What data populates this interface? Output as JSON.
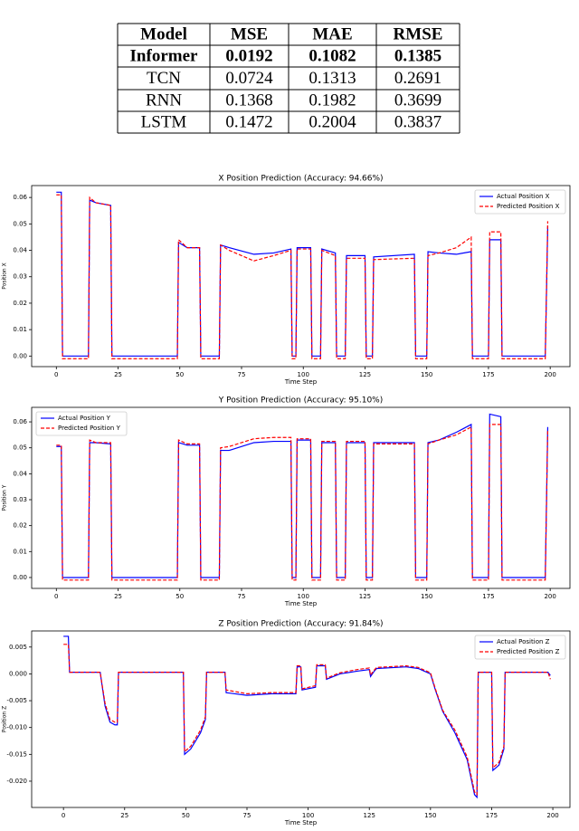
{
  "table": {
    "header": [
      "Model",
      "MSE",
      "MAE",
      "RMSE"
    ],
    "rows": [
      [
        "Informer",
        "0.0192",
        "0.1082",
        "0.1385"
      ],
      [
        "TCN",
        "0.0724",
        "0.1313",
        "0.2691"
      ],
      [
        "RNN",
        "0.1368",
        "0.1982",
        "0.3699"
      ],
      [
        "LSTM",
        "0.1472",
        "0.2004",
        "0.3837"
      ]
    ]
  },
  "chart_data": [
    {
      "type": "line",
      "title": "X Position Prediction (Accuracy: 94.66%)",
      "x_label": "Time Step",
      "y_label": "Position X",
      "xlim": [
        -10,
        208
      ],
      "xticks": [
        0,
        25,
        50,
        75,
        100,
        125,
        150,
        175,
        200
      ],
      "ylim": [
        -0.004,
        0.0645
      ],
      "yticks": [
        {
          "value": 0,
          "label": "0.00"
        },
        {
          "value": 0.01,
          "label": "0.01"
        },
        {
          "value": 0.02,
          "label": "0.02"
        },
        {
          "value": 0.03,
          "label": "0.03"
        },
        {
          "value": 0.04,
          "label": "0.04"
        },
        {
          "value": 0.05,
          "label": "0.05"
        },
        {
          "value": 0.06,
          "label": "0.06"
        }
      ],
      "legend": "upper right",
      "x": [
        0,
        2,
        2.5,
        13,
        13.5,
        16,
        22,
        22.5,
        49,
        49.5,
        53,
        58,
        58.5,
        66,
        66.5,
        70,
        80,
        88,
        95,
        95.5,
        97,
        97.5,
        103,
        103.5,
        107,
        107.5,
        113,
        113.5,
        117,
        117.5,
        125,
        125.5,
        128,
        128.5,
        145,
        145.5,
        150,
        150.5,
        155,
        162,
        168,
        168.5,
        175,
        175.5,
        180,
        180.5,
        198,
        199
      ],
      "series": [
        {
          "name": "Actual Position X",
          "color": "#0000ff",
          "linestyle": "solid",
          "values": [
            0.062,
            0.062,
            0,
            0,
            0.059,
            0.058,
            0.057,
            0,
            0,
            0.043,
            0.041,
            0.041,
            0,
            0,
            0.042,
            0.041,
            0.0385,
            0.039,
            0.0405,
            0,
            0,
            0.041,
            0.041,
            0,
            0,
            0.0405,
            0.039,
            0,
            0,
            0.038,
            0.038,
            0,
            0,
            0.0375,
            0.0385,
            0,
            0,
            0.0395,
            0.039,
            0.0385,
            0.0395,
            0,
            0,
            0.044,
            0.044,
            0,
            0,
            0.049
          ]
        },
        {
          "name": "Predicted Position X",
          "color": "#ff0000",
          "linestyle": "dashed",
          "values": [
            0.061,
            0.061,
            -0.001,
            -0.001,
            0.06,
            0.058,
            0.057,
            -0.001,
            -0.001,
            0.044,
            0.041,
            0.041,
            -0.001,
            -0.001,
            0.042,
            0.04,
            0.036,
            0.038,
            0.04,
            -0.001,
            -0.001,
            0.0405,
            0.0405,
            -0.001,
            -0.001,
            0.04,
            0.038,
            -0.001,
            -0.001,
            0.037,
            0.037,
            -0.001,
            -0.001,
            0.0365,
            0.037,
            -0.001,
            -0.001,
            0.038,
            0.039,
            0.041,
            0.045,
            -0.001,
            -0.001,
            0.047,
            0.047,
            -0.001,
            -0.001,
            0.051
          ]
        }
      ]
    },
    {
      "type": "line",
      "title": "Y Position Prediction (Accuracy: 95.10%)",
      "x_label": "Time Step",
      "y_label": "Position Y",
      "xlim": [
        -10,
        208
      ],
      "xticks": [
        0,
        25,
        50,
        75,
        100,
        125,
        150,
        175,
        200
      ],
      "ylim": [
        -0.0042,
        0.0656
      ],
      "yticks": [
        {
          "value": 0,
          "label": "0.00"
        },
        {
          "value": 0.01,
          "label": "0.01"
        },
        {
          "value": 0.02,
          "label": "0.02"
        },
        {
          "value": 0.03,
          "label": "0.03"
        },
        {
          "value": 0.04,
          "label": "0.04"
        },
        {
          "value": 0.05,
          "label": "0.05"
        },
        {
          "value": 0.06,
          "label": "0.06"
        }
      ],
      "legend": "upper left",
      "x": [
        0,
        2,
        2.5,
        13,
        13.5,
        16,
        22,
        22.5,
        49,
        49.5,
        53,
        58,
        58.5,
        66,
        66.5,
        70,
        80,
        88,
        95,
        95.5,
        97,
        97.5,
        103,
        103.5,
        107,
        107.5,
        113,
        113.5,
        117,
        117.5,
        125,
        125.5,
        128,
        128.5,
        145,
        145.5,
        150,
        150.5,
        155,
        162,
        168,
        168.5,
        175,
        175.5,
        180,
        180.5,
        198,
        199
      ],
      "series": [
        {
          "name": "Actual Position Y",
          "color": "#0000ff",
          "linestyle": "solid",
          "values": [
            0.0505,
            0.0505,
            0,
            0,
            0.052,
            0.052,
            0.0515,
            0,
            0,
            0.052,
            0.051,
            0.051,
            0,
            0,
            0.049,
            0.049,
            0.052,
            0.0525,
            0.0525,
            0,
            0,
            0.053,
            0.053,
            0,
            0,
            0.052,
            0.052,
            0,
            0,
            0.052,
            0.052,
            0,
            0,
            0.052,
            0.052,
            0,
            0,
            0.052,
            0.053,
            0.056,
            0.059,
            0,
            0,
            0.063,
            0.062,
            0,
            0,
            0.058
          ]
        },
        {
          "name": "Predicted Position Y",
          "color": "#ff0000",
          "linestyle": "dashed",
          "values": [
            0.051,
            0.051,
            -0.001,
            -0.001,
            0.053,
            0.052,
            0.052,
            -0.001,
            -0.001,
            0.053,
            0.0515,
            0.0515,
            -0.001,
            -0.001,
            0.05,
            0.0505,
            0.0535,
            0.054,
            0.054,
            -0.001,
            -0.001,
            0.0535,
            0.0535,
            -0.001,
            -0.001,
            0.0525,
            0.0525,
            -0.001,
            -0.001,
            0.0525,
            0.0525,
            -0.001,
            -0.001,
            0.0515,
            0.0515,
            -0.001,
            -0.001,
            0.0515,
            0.053,
            0.055,
            0.058,
            -0.001,
            -0.001,
            0.059,
            0.059,
            -0.001,
            -0.001,
            0.057
          ]
        }
      ]
    },
    {
      "type": "line",
      "title": "Z Position Prediction (Accuracy: 91.84%)",
      "x_label": "Time Step",
      "y_label": "Position Z",
      "xlim": [
        -13,
        207
      ],
      "xticks": [
        0,
        25,
        50,
        75,
        100,
        125,
        150,
        175,
        200
      ],
      "ylim": [
        -0.0249,
        0.008
      ],
      "yticks": [
        {
          "value": -0.02,
          "label": "-0.020"
        },
        {
          "value": -0.015,
          "label": "-0.015"
        },
        {
          "value": -0.01,
          "label": "-0.010"
        },
        -0.005,
        {
          "value": 0,
          "label": "0.000"
        },
        0.005
      ],
      "legend": "upper right",
      "x": [
        0,
        2,
        2.5,
        15,
        17,
        19,
        21,
        22,
        22.5,
        49,
        49.5,
        52,
        56,
        58,
        58.5,
        66,
        66.5,
        75,
        85,
        95,
        95.5,
        97,
        97.5,
        103,
        103.5,
        107,
        107.5,
        113,
        120,
        125,
        125.5,
        127,
        128,
        140,
        145,
        150,
        152,
        155,
        160,
        165,
        168,
        169,
        169.5,
        175,
        175.5,
        178,
        180,
        180.5,
        198,
        199
      ],
      "series": [
        {
          "name": "Actual Position Z",
          "color": "#0000ff",
          "linestyle": "solid",
          "values": [
            0.007,
            0.007,
            0.0003,
            0.0003,
            -0.006,
            -0.009,
            -0.0095,
            -0.0095,
            0.0003,
            0.0003,
            -0.015,
            -0.014,
            -0.011,
            -0.0085,
            0.0003,
            0.0003,
            -0.0035,
            -0.004,
            -0.0037,
            -0.0037,
            0.0013,
            0.0013,
            -0.003,
            -0.0025,
            0.0015,
            0.0015,
            -0.001,
            0,
            0.0005,
            0.0008,
            -0.0005,
            0.0005,
            0.001,
            0.0013,
            0.001,
            0,
            -0.003,
            -0.007,
            -0.011,
            -0.016,
            -0.0225,
            -0.023,
            0.0003,
            0.0003,
            -0.018,
            -0.017,
            -0.014,
            0.0003,
            0.0003,
            -0.0003
          ]
        },
        {
          "name": "Predicted Position Z",
          "color": "#ff0000",
          "linestyle": "dashed",
          "values": [
            0.0055,
            0.0055,
            0.0003,
            0.0003,
            -0.0055,
            -0.0085,
            -0.009,
            -0.009,
            0.0003,
            0.0003,
            -0.0145,
            -0.0135,
            -0.0105,
            -0.008,
            0.0003,
            0.0003,
            -0.003,
            -0.0037,
            -0.0035,
            -0.0035,
            0.0015,
            0.0015,
            -0.0028,
            -0.0022,
            0.0017,
            0.0017,
            -0.0008,
            0.0002,
            0.0008,
            0.0011,
            -0.0002,
            0.0007,
            0.0012,
            0.0015,
            0.0012,
            0.0002,
            -0.0028,
            -0.0068,
            -0.0105,
            -0.0155,
            -0.022,
            -0.0225,
            0.0003,
            0.0003,
            -0.0175,
            -0.0165,
            -0.0135,
            0.0003,
            0.0003,
            -0.001
          ]
        }
      ]
    }
  ]
}
